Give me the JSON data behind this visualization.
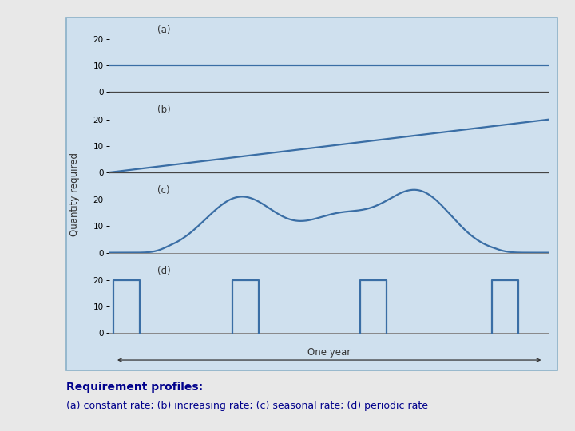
{
  "background_color": "#cfe0ee",
  "outer_bg": "#e8e8e8",
  "line_color": "#3a6ea5",
  "axis_line_color": "#444444",
  "zero_line_color": "#888888",
  "border_color": "#8ab0c8",
  "label_a": "(a)",
  "label_b": "(b)",
  "label_c": "(c)",
  "label_d": "(d)",
  "ylabel": "Quantity required",
  "one_year_label": "One year",
  "caption_line1": "Requirement profiles:",
  "caption_line2": "(a) constant rate; (b) increasing rate; (c) seasonal rate; (d) periodic rate",
  "caption_color": "#00008b",
  "panel_yticks": [
    0,
    10,
    20
  ],
  "ylim": [
    -3,
    26
  ],
  "lw": 1.6
}
